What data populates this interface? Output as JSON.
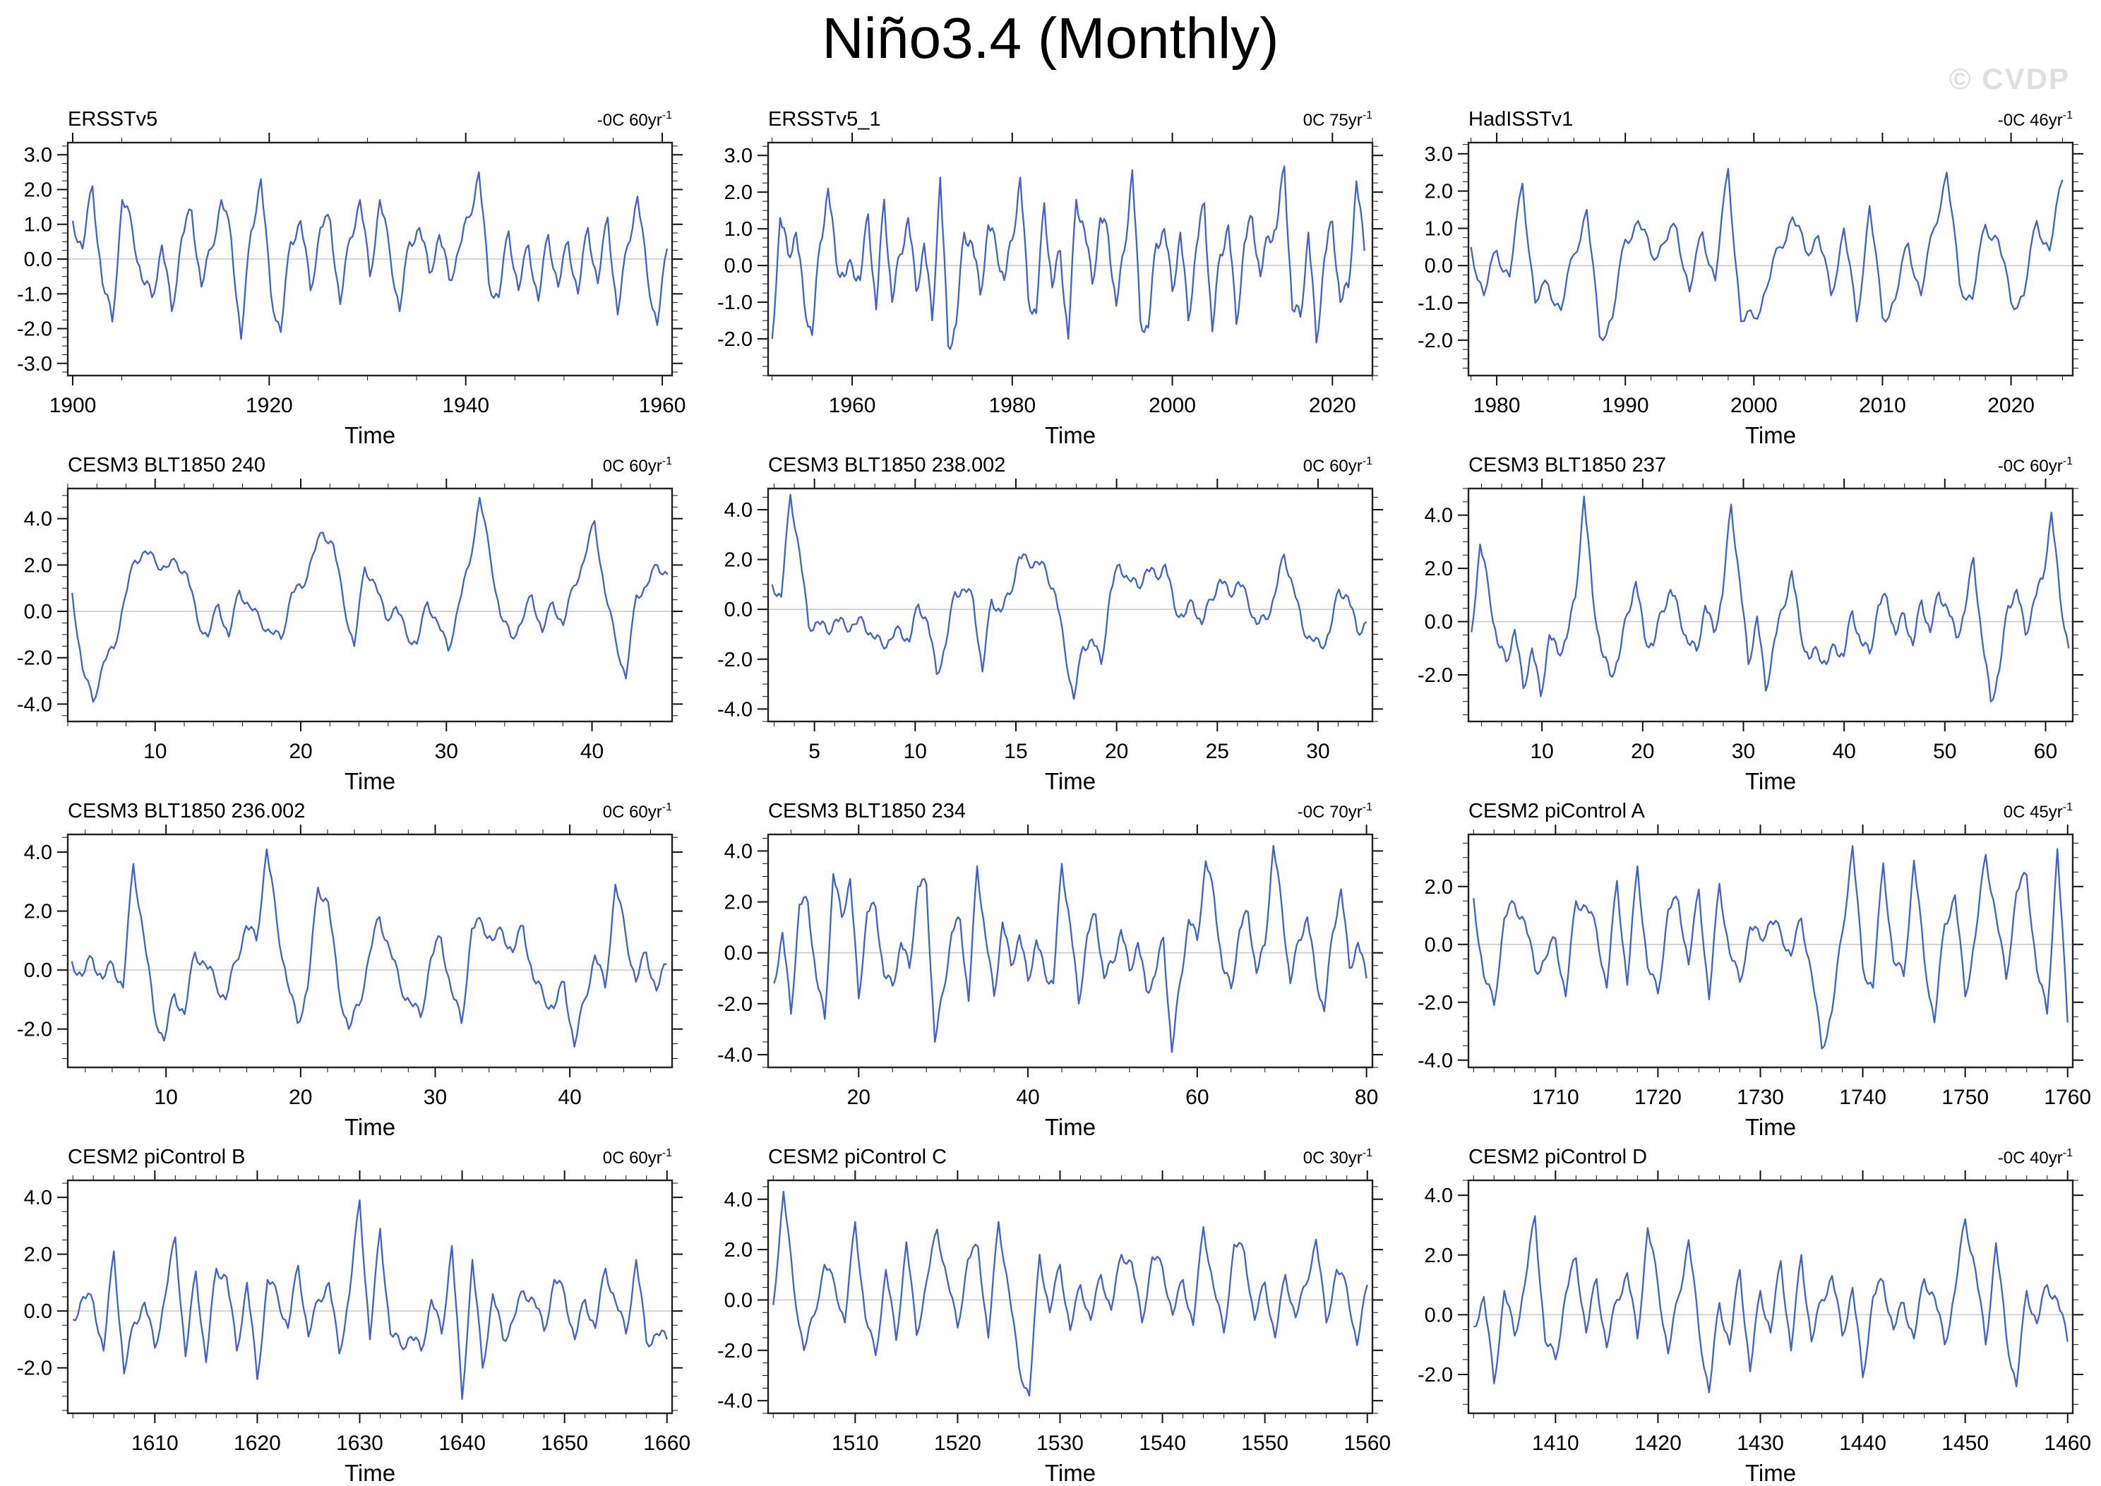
{
  "page_title": "Niño3.4 (Monthly)",
  "watermark": "© CVDP",
  "colors": {
    "line": "#3B62D8",
    "zero_line": "#C9C9C9",
    "frame": "#222222",
    "tick": "#111111",
    "text": "#000000",
    "watermark": "#DFDFDF"
  },
  "chart_data": [
    {
      "type": "line",
      "title": "ERSSTv5",
      "trend_label": "-0C 60yr",
      "trend_exp": "-1",
      "xlabel": "Time",
      "grid": false,
      "x_ticks": [
        1900,
        1920,
        1940,
        1960
      ],
      "x_minor": 5,
      "y_ticks": [
        3,
        2,
        1,
        0,
        -1,
        -2,
        -3
      ],
      "y_minor": 0.25,
      "xlim": [
        1899.5,
        1961
      ],
      "ylim": [
        -3.35,
        3.35
      ],
      "x_start": 1900,
      "x_end": 1960.5,
      "values": [
        1.1,
        0.3,
        2.1,
        -0.7,
        -1.8,
        1.7,
        0.9,
        -0.6,
        -1.1,
        0.4,
        -1.5,
        0.6,
        1.4,
        -0.8,
        0.3,
        1.7,
        0.6,
        -2.3,
        0.8,
        2.3,
        -1.0,
        -2.1,
        0.5,
        1.1,
        -0.9,
        0.9,
        1.1,
        -1.3,
        0.6,
        1.7,
        -0.5,
        1.7,
        0.2,
        -1.5,
        0.5,
        0.9,
        -0.4,
        0.7,
        -0.6,
        0.3,
        1.2,
        2.5,
        -0.7,
        -1.1,
        0.8,
        -0.9,
        0.4,
        -1.2,
        0.7,
        -0.8,
        0.5,
        -1.0,
        0.9,
        -0.7,
        1.2,
        -1.6,
        0.4,
        1.8,
        -0.5,
        -1.9,
        0.3
      ]
    },
    {
      "type": "line",
      "title": "ERSSTv5_1",
      "trend_label": "0C 75yr",
      "trend_exp": "-1",
      "xlabel": "Time",
      "grid": false,
      "x_ticks": [
        1960,
        1980,
        2000,
        2020
      ],
      "x_minor": 5,
      "y_ticks": [
        3,
        2,
        1,
        0,
        -1,
        -2
      ],
      "y_minor": 0.25,
      "xlim": [
        1949.5,
        2025
      ],
      "ylim": [
        -3.0,
        3.35
      ],
      "x_start": 1950,
      "x_end": 2024,
      "values": [
        -2.0,
        1.3,
        0.3,
        0.9,
        -1.0,
        -1.9,
        0.6,
        2.1,
        0.1,
        -0.3,
        0.0,
        -0.4,
        1.4,
        -1.2,
        1.8,
        -1.0,
        0.3,
        1.3,
        -0.7,
        0.6,
        -1.5,
        2.4,
        -2.2,
        -1.6,
        0.9,
        0.6,
        -0.8,
        1.1,
        0.5,
        -0.4,
        0.7,
        2.4,
        -0.9,
        -1.3,
        1.7,
        -0.6,
        0.4,
        -2.0,
        1.8,
        1.0,
        -0.5,
        1.3,
        0.8,
        -1.1,
        0.4,
        2.6,
        -1.5,
        -1.7,
        0.6,
        1.0,
        -0.7,
        0.9,
        -1.5,
        0.5,
        1.7,
        -1.8,
        0.3,
        1.1,
        -1.6,
        0.6,
        1.3,
        -0.3,
        0.8,
        1.0,
        2.7,
        -1.2,
        -1.4,
        0.9,
        -2.1,
        0.2,
        1.2,
        -1.0,
        -0.6,
        2.3,
        0.4
      ]
    },
    {
      "type": "line",
      "title": "HadISSTv1",
      "trend_label": "-0C 46yr",
      "trend_exp": "-1",
      "xlabel": "Time",
      "grid": false,
      "x_ticks": [
        1980,
        1990,
        2000,
        2010,
        2020
      ],
      "x_minor": 2,
      "y_ticks": [
        3,
        2,
        1,
        0,
        -1,
        -2
      ],
      "y_minor": 0.25,
      "xlim": [
        1977.8,
        2024.8
      ],
      "ylim": [
        -2.95,
        3.3
      ],
      "x_start": 1978,
      "x_end": 2024,
      "values": [
        0.5,
        -0.8,
        0.4,
        -0.3,
        2.2,
        -1.0,
        -0.5,
        -1.2,
        0.3,
        1.5,
        -1.9,
        -1.4,
        0.7,
        1.2,
        0.3,
        0.6,
        1.0,
        -0.7,
        0.9,
        -0.4,
        2.6,
        -1.5,
        -1.4,
        -0.6,
        0.5,
        1.3,
        0.4,
        0.8,
        -0.8,
        1.0,
        -1.5,
        1.6,
        -1.4,
        -0.9,
        0.6,
        -0.8,
        1.0,
        2.5,
        -0.5,
        -0.9,
        1.1,
        0.7,
        -1.0,
        -0.8,
        1.2,
        0.4,
        2.3
      ]
    },
    {
      "type": "line",
      "title": "CESM3 BLT1850 240",
      "trend_label": "0C 60yr",
      "trend_exp": "-1",
      "xlabel": "Time",
      "grid": false,
      "x_ticks": [
        10,
        20,
        30,
        40
      ],
      "x_minor": 2,
      "y_ticks": [
        4,
        2,
        0,
        -2,
        -4
      ],
      "y_minor": 0.5,
      "xlim": [
        4,
        45.5
      ],
      "ylim": [
        -4.75,
        5.3
      ],
      "x_start": 4.3,
      "x_end": 45.2,
      "values": [
        0.8,
        -2.5,
        -3.9,
        -2.2,
        -1.6,
        0.5,
        2.2,
        2.6,
        2.1,
        1.9,
        2.1,
        1.6,
        -0.4,
        -1.1,
        0.3,
        -1.1,
        0.9,
        0.2,
        -0.4,
        -0.9,
        -1.2,
        0.8,
        1.0,
        2.4,
        3.4,
        2.9,
        0.3,
        -1.5,
        1.9,
        1.2,
        -0.3,
        0.2,
        -1.0,
        -1.4,
        0.4,
        -0.5,
        -1.7,
        0.3,
        2.0,
        4.9,
        2.4,
        -0.2,
        -1.1,
        -0.5,
        0.7,
        -0.9,
        0.4,
        -0.6,
        1.1,
        2.2,
        3.9,
        0.8,
        -1.2,
        -2.9,
        0.7,
        1.1,
        2.0,
        1.6
      ]
    },
    {
      "type": "line",
      "title": "CESM3 BLT1850 238.002",
      "trend_label": "0C 60yr",
      "trend_exp": "-1",
      "xlabel": "Time",
      "grid": false,
      "x_ticks": [
        5,
        10,
        15,
        20,
        25,
        30
      ],
      "x_minor": 1,
      "y_ticks": [
        4,
        2,
        0,
        -2,
        -4
      ],
      "y_minor": 0.5,
      "xlim": [
        2.7,
        32.7
      ],
      "ylim": [
        -4.5,
        4.85
      ],
      "x_start": 2.9,
      "x_end": 32.4,
      "values": [
        1.0,
        0.5,
        4.6,
        2.3,
        -0.7,
        -0.5,
        -0.9,
        -0.4,
        -0.7,
        -0.6,
        -0.5,
        -1.1,
        -1.4,
        -1.2,
        -0.8,
        -1.3,
        0.2,
        -0.5,
        -2.6,
        -1.4,
        0.7,
        0.8,
        0.4,
        -2.5,
        0.4,
        -0.1,
        0.6,
        2.1,
        1.9,
        1.9,
        1.5,
        0.6,
        -1.6,
        -3.6,
        -1.5,
        -1.2,
        -2.2,
        0.7,
        1.8,
        1.2,
        0.9,
        1.6,
        1.3,
        1.8,
        0.1,
        -0.3,
        0.3,
        -0.6,
        0.4,
        1.2,
        0.6,
        1.1,
        0.4,
        -0.6,
        -0.4,
        0.6,
        2.2,
        0.9,
        -0.7,
        -1.2,
        -1.5,
        -0.9,
        0.8,
        0.5,
        -0.9,
        -0.5
      ]
    },
    {
      "type": "line",
      "title": "CESM3 BLT1850 237",
      "trend_label": "-0C 60yr",
      "trend_exp": "-1",
      "xlabel": "Time",
      "grid": false,
      "x_ticks": [
        10,
        20,
        30,
        40,
        50,
        60
      ],
      "x_minor": 2,
      "y_ticks": [
        4,
        2,
        0,
        -2
      ],
      "y_minor": 0.5,
      "xlim": [
        2.7,
        62.7
      ],
      "ylim": [
        -3.75,
        5.0
      ],
      "x_start": 3,
      "x_end": 62.3,
      "values": [
        -0.4,
        2.9,
        1.2,
        -0.8,
        -1.5,
        -0.3,
        -2.5,
        -1.0,
        -2.8,
        -0.5,
        -1.2,
        -0.6,
        0.9,
        4.7,
        1.0,
        -1.1,
        -2.0,
        -1.4,
        0.3,
        1.5,
        -0.6,
        -0.9,
        0.4,
        1.2,
        0.3,
        -0.8,
        -1.1,
        0.6,
        -0.4,
        1.0,
        4.4,
        1.5,
        -1.6,
        0.2,
        -2.6,
        -0.7,
        0.5,
        1.9,
        -0.4,
        -1.4,
        -1.1,
        -1.6,
        -0.9,
        -1.3,
        0.4,
        -0.8,
        -1.2,
        0.6,
        0.9,
        -0.5,
        0.3,
        -0.9,
        0.8,
        -0.4,
        1.1,
        0.5,
        -0.6,
        0.4,
        2.4,
        -0.7,
        -3.0,
        -1.8,
        0.6,
        1.2,
        -0.5,
        0.8,
        1.6,
        4.1,
        0.9,
        -1.0
      ]
    },
    {
      "type": "line",
      "title": "CESM3 BLT1850 236.002",
      "trend_label": "0C 60yr",
      "trend_exp": "-1",
      "xlabel": "Time",
      "grid": false,
      "x_ticks": [
        10,
        20,
        30,
        40
      ],
      "x_minor": 2,
      "y_ticks": [
        4,
        2,
        0,
        -2
      ],
      "y_minor": 0.5,
      "xlim": [
        2.7,
        47.6
      ],
      "ylim": [
        -3.3,
        4.6
      ],
      "x_start": 3,
      "x_end": 47.2,
      "values": [
        0.3,
        -0.2,
        0.4,
        -0.3,
        0.2,
        -0.6,
        3.6,
        1.2,
        -1.4,
        -2.4,
        -0.8,
        -1.5,
        0.6,
        0.2,
        -0.4,
        -1.0,
        0.3,
        1.5,
        1.0,
        4.1,
        1.6,
        -0.4,
        -1.8,
        -0.6,
        2.8,
        2.3,
        -0.6,
        -2.0,
        -1.2,
        0.5,
        1.8,
        0.7,
        -0.5,
        -1.1,
        -1.6,
        0.4,
        1.1,
        -0.7,
        -1.8,
        1.4,
        1.6,
        1.0,
        1.3,
        0.6,
        1.5,
        -0.3,
        -0.9,
        -1.3,
        -0.4,
        -2.6,
        -1.0,
        0.5,
        -0.6,
        2.9,
        1.2,
        -0.4,
        0.6,
        -0.7,
        0.2
      ]
    },
    {
      "type": "line",
      "title": "CESM3 BLT1850 234",
      "trend_label": "-0C 70yr",
      "trend_exp": "-1",
      "xlabel": "Time",
      "grid": false,
      "x_ticks": [
        20,
        40,
        60,
        80
      ],
      "x_minor": 4,
      "y_ticks": [
        4,
        2,
        0,
        -2,
        -4
      ],
      "y_minor": 0.5,
      "xlim": [
        9.3,
        80.7
      ],
      "ylim": [
        -4.5,
        4.65
      ],
      "x_start": 10,
      "x_end": 80,
      "values": [
        -1.2,
        0.8,
        -2.4,
        1.9,
        2.0,
        -1.0,
        -2.6,
        3.1,
        1.4,
        2.9,
        -1.8,
        1.6,
        1.8,
        -0.9,
        -1.3,
        0.4,
        -0.6,
        2.6,
        2.7,
        -3.5,
        -1.5,
        0.8,
        1.3,
        -1.9,
        3.4,
        0.6,
        -1.7,
        1.2,
        -0.5,
        0.7,
        -1.1,
        0.5,
        -0.8,
        -1.2,
        3.5,
        1.1,
        -2.0,
        0.7,
        1.5,
        -1.0,
        -0.4,
        0.9,
        -0.7,
        0.4,
        -1.5,
        -0.9,
        0.6,
        -3.9,
        -1.1,
        1.3,
        0.5,
        3.6,
        2.2,
        -0.6,
        -1.4,
        0.9,
        1.6,
        -0.8,
        0.3,
        4.2,
        1.8,
        -1.2,
        0.5,
        1.4,
        -0.9,
        -2.3,
        0.8,
        2.5,
        -0.6,
        0.4,
        -1.0
      ]
    },
    {
      "type": "line",
      "title": "CESM2 piControl A",
      "trend_label": "0C 45yr",
      "trend_exp": "-1",
      "xlabel": "Time",
      "grid": false,
      "x_ticks": [
        1710,
        1720,
        1730,
        1740,
        1750,
        1760
      ],
      "x_minor": 2,
      "y_ticks": [
        2,
        0,
        -2,
        -4
      ],
      "y_minor": 0.5,
      "xlim": [
        1701.5,
        1760.5
      ],
      "ylim": [
        -4.25,
        3.8
      ],
      "x_start": 1702,
      "x_end": 1760,
      "values": [
        1.6,
        -1.1,
        -2.1,
        0.9,
        1.4,
        0.8,
        -0.9,
        -0.5,
        0.2,
        -1.8,
        1.5,
        1.3,
        0.5,
        -1.5,
        2.2,
        -1.4,
        2.7,
        -0.8,
        -1.7,
        1.2,
        1.5,
        -0.7,
        1.9,
        -1.9,
        2.1,
        -0.3,
        -1.3,
        0.6,
        0.2,
        0.8,
        0.4,
        -0.4,
        0.9,
        -1.0,
        -3.6,
        -2.3,
        0.4,
        3.4,
        -0.8,
        -1.5,
        2.8,
        -0.6,
        -1.1,
        2.9,
        -0.5,
        -2.7,
        0.7,
        1.7,
        -1.8,
        0.3,
        3.1,
        1.0,
        -1.2,
        1.8,
        2.4,
        -0.9,
        -2.4,
        3.3,
        -2.7
      ]
    },
    {
      "type": "line",
      "title": "CESM2 piControl B",
      "trend_label": "0C 60yr",
      "trend_exp": "-1",
      "xlabel": "Time",
      "grid": false,
      "x_ticks": [
        1610,
        1620,
        1630,
        1640,
        1650,
        1660
      ],
      "x_minor": 2,
      "y_ticks": [
        4,
        2,
        0,
        -2
      ],
      "y_minor": 0.5,
      "xlim": [
        1601.5,
        1660.5
      ],
      "ylim": [
        -3.6,
        4.6
      ],
      "x_start": 1602,
      "x_end": 1660,
      "values": [
        -0.3,
        0.5,
        0.3,
        -1.4,
        2.1,
        -2.2,
        -0.4,
        0.3,
        -1.3,
        0.5,
        2.6,
        -1.6,
        1.4,
        -1.8,
        1.5,
        1.2,
        -1.4,
        1.0,
        -2.4,
        1.1,
        0.5,
        -0.6,
        1.6,
        -0.9,
        0.4,
        1.0,
        -1.5,
        0.6,
        3.9,
        -1.0,
        2.9,
        -0.8,
        -1.2,
        -0.9,
        -1.4,
        0.4,
        -0.8,
        2.3,
        -3.1,
        1.8,
        -2.0,
        0.6,
        -1.0,
        -0.3,
        0.7,
        0.4,
        -0.7,
        1.1,
        0.6,
        -1.0,
        0.4,
        -0.6,
        1.5,
        0.3,
        -0.8,
        1.8,
        -1.1,
        -0.8,
        -1.0
      ]
    },
    {
      "type": "line",
      "title": "CESM2 piControl C",
      "trend_label": "0C 30yr",
      "trend_exp": "-1",
      "xlabel": "Time",
      "grid": false,
      "x_ticks": [
        1510,
        1520,
        1530,
        1540,
        1550,
        1560
      ],
      "x_minor": 2,
      "y_ticks": [
        4,
        2,
        0,
        -2,
        -4
      ],
      "y_minor": 0.5,
      "xlim": [
        1501.5,
        1560.5
      ],
      "ylim": [
        -4.5,
        4.75
      ],
      "x_start": 1502,
      "x_end": 1560,
      "values": [
        -0.2,
        4.3,
        0.5,
        -2.0,
        -0.6,
        1.4,
        0.6,
        -0.9,
        3.1,
        -0.7,
        -2.2,
        1.2,
        -1.6,
        2.3,
        -1.4,
        0.8,
        2.8,
        0.8,
        -1.1,
        1.6,
        2.1,
        -1.5,
        3.1,
        0.4,
        -2.7,
        -3.8,
        1.8,
        -0.5,
        1.4,
        -1.2,
        0.6,
        -0.8,
        1.0,
        -0.4,
        1.8,
        1.5,
        -0.9,
        1.7,
        1.3,
        -0.6,
        0.8,
        -1.0,
        2.9,
        0.5,
        -1.3,
        2.2,
        1.9,
        -0.8,
        0.7,
        -1.5,
        1.0,
        -0.7,
        0.6,
        2.4,
        -0.9,
        1.2,
        0.5,
        -1.8,
        0.6
      ]
    },
    {
      "type": "line",
      "title": "CESM2 piControl D",
      "trend_label": "-0C 40yr",
      "trend_exp": "-1",
      "xlabel": "Time",
      "grid": false,
      "x_ticks": [
        1410,
        1420,
        1430,
        1440,
        1450,
        1460
      ],
      "x_minor": 2,
      "y_ticks": [
        4,
        2,
        0,
        -2
      ],
      "y_minor": 0.5,
      "xlim": [
        1401.5,
        1460.5
      ],
      "ylim": [
        -3.3,
        4.5
      ],
      "x_start": 1402,
      "x_end": 1460,
      "values": [
        -0.4,
        0.6,
        -2.3,
        0.8,
        -0.7,
        1.0,
        3.3,
        -0.9,
        -1.5,
        0.7,
        1.9,
        -0.6,
        1.2,
        -1.1,
        0.5,
        1.4,
        -0.8,
        2.9,
        1.0,
        -1.3,
        0.6,
        2.5,
        -0.5,
        -2.6,
        0.4,
        -1.0,
        1.5,
        -1.9,
        0.8,
        -0.6,
        1.8,
        -1.2,
        2.0,
        -0.9,
        0.5,
        1.3,
        -0.7,
        0.9,
        -2.1,
        0.6,
        1.1,
        -0.5,
        0.4,
        -0.8,
        1.2,
        0.6,
        -1.0,
        0.8,
        3.2,
        1.5,
        -1.0,
        2.4,
        -0.7,
        -2.4,
        0.8,
        -0.3,
        1.0,
        0.5,
        -0.9
      ]
    }
  ]
}
